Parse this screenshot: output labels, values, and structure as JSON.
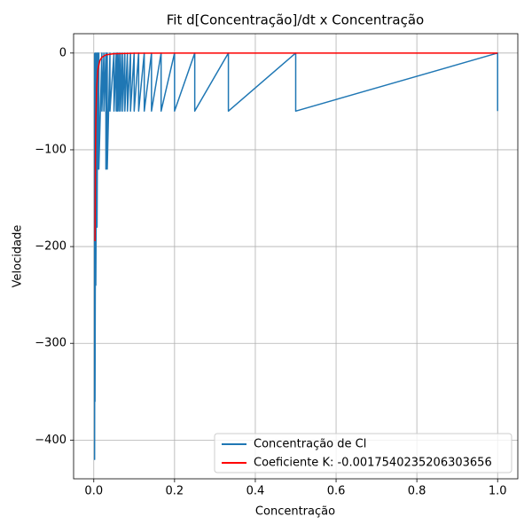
{
  "chart_data": {
    "type": "line",
    "title": "Fit d[Concentração]/dt x Concentração",
    "x_label": "Concentração",
    "y_label": "Velocidade",
    "xlim": [
      -0.05,
      1.05
    ],
    "ylim": [
      -440,
      20
    ],
    "xticks": [
      {
        "value": 0,
        "label": "0.0"
      },
      0.2,
      0.4,
      0.6,
      0.8,
      {
        "value": 1,
        "label": "1.0"
      }
    ],
    "yticks": [
      {
        "value": -400,
        "label": "−400"
      },
      {
        "value": -300,
        "label": "−300"
      },
      {
        "value": -200,
        "label": "−200"
      },
      {
        "value": -100,
        "label": "−100"
      },
      0
    ],
    "grid": true,
    "legend": "lower right",
    "series": [
      {
        "name": "Concentração de Cl",
        "color": "#1f77b4",
        "x": [
          1,
          1,
          0.5,
          0.5,
          0.3333,
          0.3333,
          0.25,
          0.25,
          0.2,
          0.2,
          0.1667,
          0.1667,
          0.1429,
          0.1429,
          0.125,
          0.125,
          0.1111,
          0.1111,
          0.1,
          0.1,
          0.0909,
          0.0909,
          0.0833,
          0.0833,
          0.0769,
          0.0769,
          0.0714,
          0.0714,
          0.0667,
          0.0667,
          0.0625,
          0.0625,
          0.0588,
          0.0588,
          0.0556,
          0.0556,
          0.05,
          0.05,
          0.04,
          0.04,
          0.0333,
          0.0333,
          0.03,
          0.03,
          0.025,
          0.025,
          0.02,
          0.02,
          0.0125,
          0.0125,
          0.01,
          0.01,
          0.008,
          0.008,
          0.005,
          0.005,
          0.003,
          0.003,
          0.002,
          0.002
        ],
        "values": [
          -60,
          0,
          -60,
          0,
          -60,
          0,
          -60,
          0,
          -60,
          0,
          -60,
          0,
          -60,
          0,
          -60,
          0,
          -60,
          0,
          -60,
          0,
          -60,
          0,
          -60,
          0,
          -60,
          0,
          -60,
          0,
          -60,
          0,
          -60,
          0,
          -60,
          0,
          -60,
          0,
          -60,
          0,
          -60,
          0,
          -120,
          0,
          -120,
          0,
          -60,
          0,
          -60,
          0,
          -120,
          0,
          -120,
          0,
          -180,
          0,
          -240,
          0,
          -360,
          0,
          -420,
          0
        ]
      },
      {
        "name": "Coeficiente K: -0.0017540235206303656",
        "color": "#ff0000",
        "x": [
          0.003,
          0.004,
          0.005,
          0.007,
          0.01,
          0.015,
          0.02,
          0.03,
          0.05,
          0.1,
          0.2,
          0.5,
          1
        ],
        "values": [
          -194.4,
          -109.4,
          -70,
          -35.7,
          -17.5,
          -7.8,
          -4.4,
          -1.9,
          -0.7,
          -0.2,
          0,
          0,
          0
        ]
      }
    ]
  }
}
